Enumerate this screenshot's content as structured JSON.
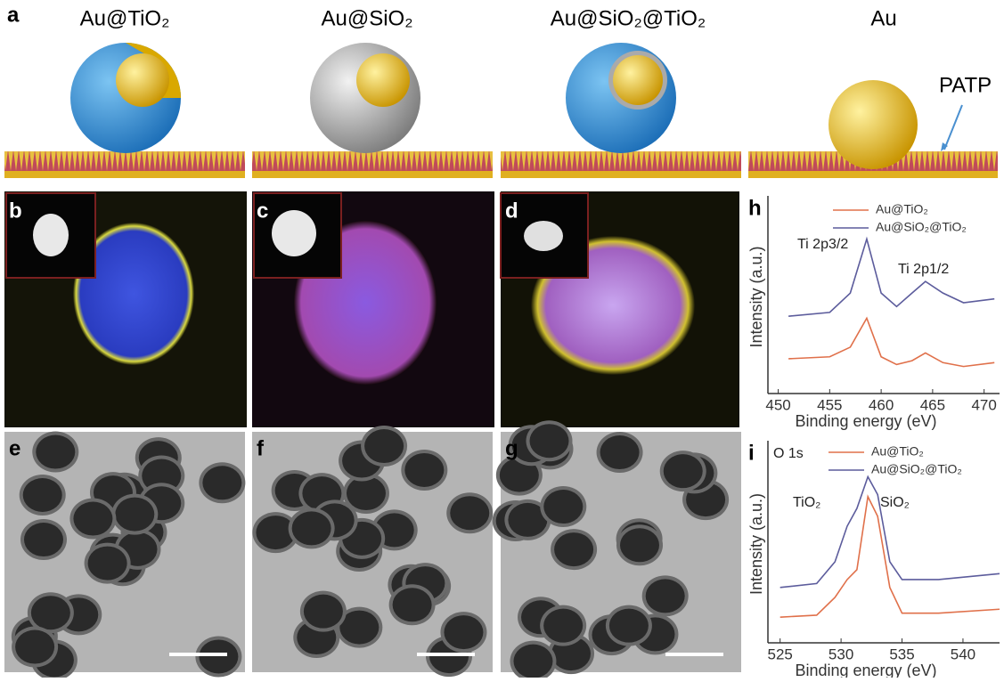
{
  "panel_a": {
    "label": "a",
    "items": [
      {
        "title": "Au@TiO₂"
      },
      {
        "title": "Au@SiO₂"
      },
      {
        "title": "Au@SiO₂@TiO₂"
      },
      {
        "title": "Au"
      }
    ],
    "annotation": "PATP"
  },
  "panel_labels": [
    "b",
    "c",
    "d",
    "e",
    "f",
    "g"
  ],
  "chart_data": [
    {
      "type": "line",
      "label": "h",
      "xlabel": "Binding energy (eV)",
      "ylabel": "Intensity (a.u.)",
      "x": [
        451,
        455,
        457,
        458.6,
        460,
        461.5,
        463,
        464.3,
        466,
        468,
        471
      ],
      "series": [
        {
          "name": "Au@TiO₂",
          "color": "#e0704a",
          "values": [
            18,
            19,
            24,
            39,
            19,
            15,
            17,
            21,
            16,
            14,
            16
          ]
        },
        {
          "name": "Au@SiO₂@TiO₂",
          "color": "#5c5c9c",
          "values": [
            40,
            42,
            52,
            80,
            52,
            45,
            52,
            58,
            52,
            47,
            49
          ]
        }
      ],
      "xlim": [
        449,
        471.5
      ],
      "ylim": [
        0,
        100
      ],
      "xticks": [
        450,
        455,
        460,
        465,
        470
      ],
      "annotations": [
        "Ti 2p3/2",
        "Ti 2p1/2"
      ]
    },
    {
      "type": "line",
      "label": "i",
      "xlabel": "Binding energy (eV)",
      "ylabel": "Intensity (a.u.)",
      "x": [
        525,
        528,
        529.5,
        530.5,
        531.3,
        532.2,
        533,
        534,
        535,
        538,
        543
      ],
      "series": [
        {
          "name": "Au@TiO₂",
          "color": "#e0704a",
          "values": [
            13,
            14,
            23,
            32,
            37,
            74,
            64,
            28,
            15,
            15,
            17
          ]
        },
        {
          "name": "Au@SiO₂@TiO₂",
          "color": "#5c5c9c",
          "values": [
            28,
            30,
            41,
            59,
            68,
            84,
            75,
            41,
            32,
            32,
            35
          ]
        }
      ],
      "xlim": [
        524,
        543
      ],
      "ylim": [
        0,
        100
      ],
      "xticks": [
        525,
        530,
        535,
        540
      ],
      "annotations": [
        "O 1s",
        "TiO₂",
        "SiO₂"
      ]
    }
  ]
}
